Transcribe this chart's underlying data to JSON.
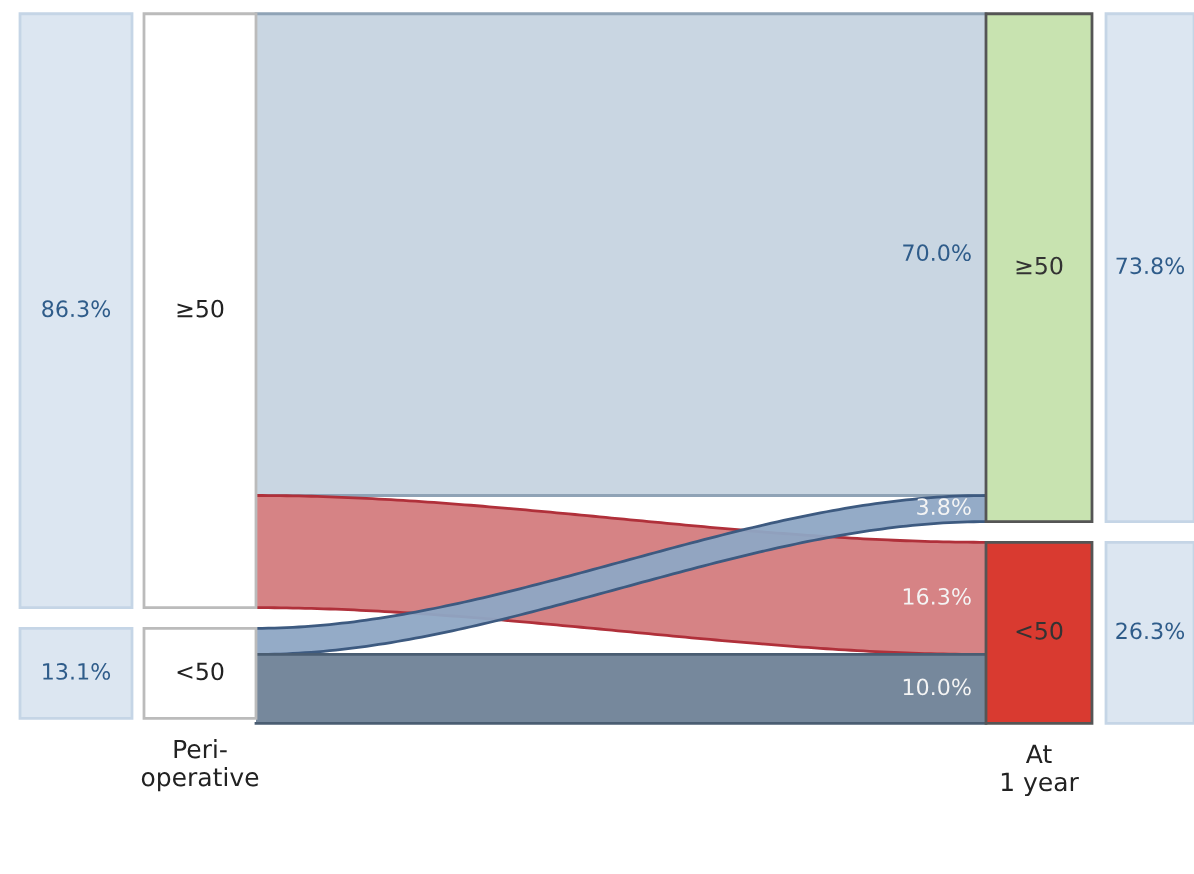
{
  "chart_data": {
    "type": "other",
    "categories": [
      "Peri-\noperative",
      "At\n1 year"
    ],
    "series": [
      {
        "name": "≥50",
        "color": "#c8e3b0",
        "colors": [
          "#dce6f1",
          "#dce6f1"
        ],
        "values": [
          86.3,
          73.8
        ],
        "value_labels": [
          "86.3%",
          "73.8%"
        ]
      },
      {
        "name": "<50",
        "color": "#d93a30",
        "colors": [
          "#dce6f1",
          "#dce6f1"
        ],
        "values": [
          13.1,
          26.3
        ],
        "value_labels": [
          "13.1%",
          "26.3%"
        ]
      },
      {
        "color": "#c6d4e0",
        "values": [
          null,
          70.0
        ],
        "value_labels": [
          null,
          "70.0%"
        ]
      },
      {
        "color": "#d47c7e",
        "values": [
          null,
          16.3
        ],
        "value_labels": [
          null,
          "16.3%"
        ]
      },
      {
        "color": "#8ea7c4",
        "values": [
          null,
          3.8
        ],
        "value_labels": [
          null,
          "3.8%"
        ]
      },
      {
        "color": "#6f8297",
        "values": [
          null,
          10.0
        ],
        "value_labels": [
          null,
          "10.0%"
        ]
      }
    ]
  }
}
